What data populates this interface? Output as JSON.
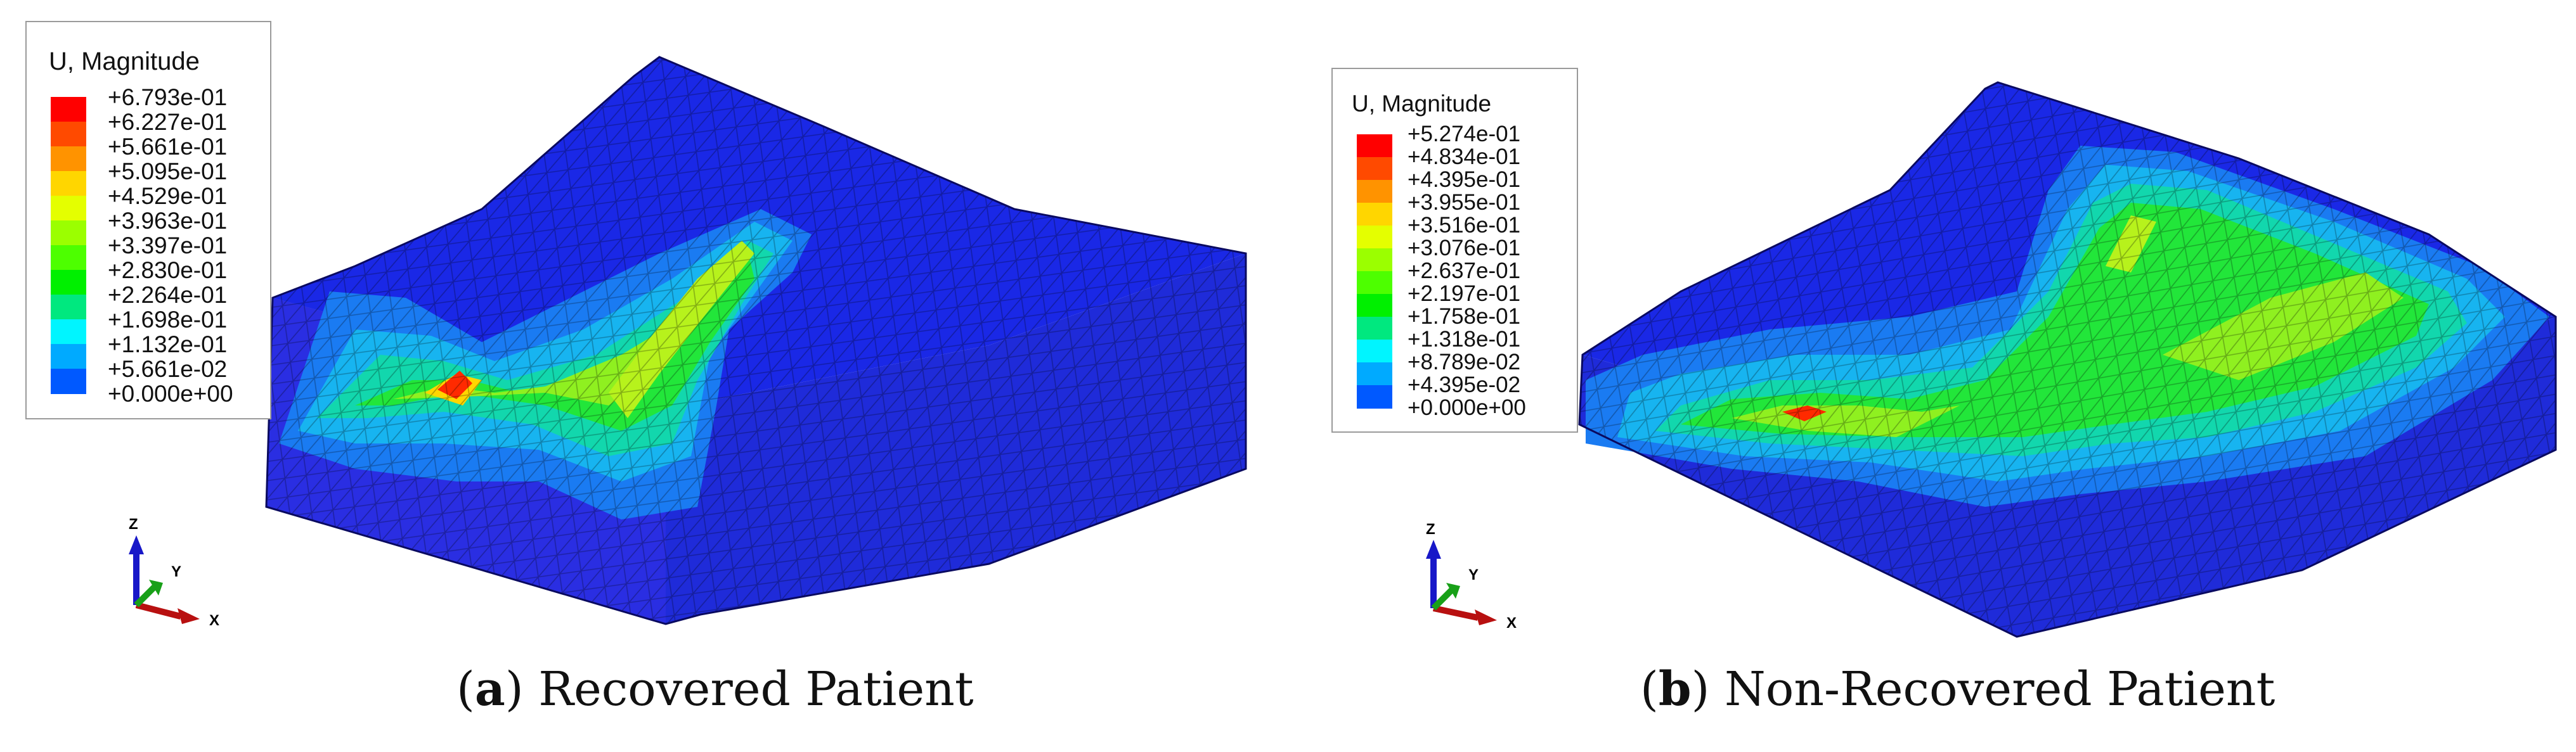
{
  "panels": [
    {
      "id": "a",
      "caption": {
        "open": "(",
        "letter": "a",
        "close": ")",
        "text": " Recovered Patient"
      },
      "legend": {
        "title": "U, Magnitude",
        "labels": [
          "+6.793e-01",
          "+6.227e-01",
          "+5.661e-01",
          "+5.095e-01",
          "+4.529e-01",
          "+3.963e-01",
          "+3.397e-01",
          "+2.830e-01",
          "+2.264e-01",
          "+1.698e-01",
          "+1.132e-01",
          "+5.661e-02",
          "+0.000e+00"
        ],
        "colors": [
          "#ff0000",
          "#ff4a00",
          "#ff9300",
          "#ffd600",
          "#e4ff00",
          "#9bff00",
          "#4dff00",
          "#00f000",
          "#00e87f",
          "#00f5ff",
          "#00aaff",
          "#0059ff",
          "#0000ff"
        ]
      },
      "triad": {
        "z": "Z",
        "y": "Y",
        "x": "X"
      }
    },
    {
      "id": "b",
      "caption": {
        "open": "(",
        "letter": "b",
        "close": ")",
        "text": " Non-Recovered Patient"
      },
      "legend": {
        "title": "U, Magnitude",
        "labels": [
          "+5.274e-01",
          "+4.834e-01",
          "+4.395e-01",
          "+3.955e-01",
          "+3.516e-01",
          "+3.076e-01",
          "+2.637e-01",
          "+2.197e-01",
          "+1.758e-01",
          "+1.318e-01",
          "+8.789e-02",
          "+4.395e-02",
          "+0.000e+00"
        ],
        "colors": [
          "#ff0000",
          "#ff4a00",
          "#ff9300",
          "#ffd600",
          "#e4ff00",
          "#9bff00",
          "#4dff00",
          "#00f000",
          "#00e87f",
          "#00f5ff",
          "#00aaff",
          "#0059ff",
          "#0000ff"
        ]
      },
      "triad": {
        "z": "Z",
        "y": "Y",
        "x": "X"
      }
    }
  ]
}
